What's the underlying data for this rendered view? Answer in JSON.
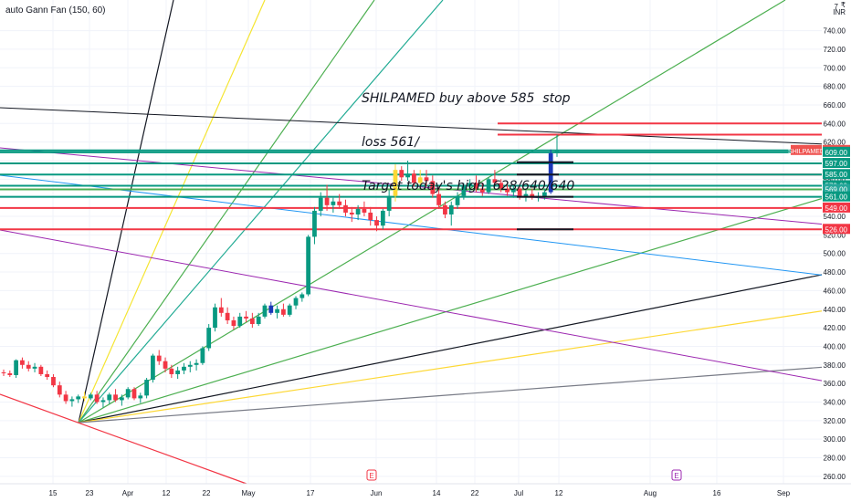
{
  "chart_data": {
    "type": "candlestick",
    "indicator_label": "auto Gann Fan (150, 60)",
    "currency_label": "₹",
    "currency_code": "INR",
    "annotation": {
      "lines": [
        "SHILPAMED buy above 585  stop",
        "loss 561/",
        "Target today's high  628/640/640"
      ]
    },
    "y_axis": {
      "ticks": [
        260,
        280,
        300,
        320,
        340,
        360,
        380,
        400,
        420,
        440,
        460,
        480,
        500,
        520,
        540,
        560,
        580,
        600,
        620,
        640,
        660,
        680,
        700,
        720,
        740
      ],
      "top_label": "7",
      "range": [
        252,
        773
      ]
    },
    "x_axis": {
      "labels": [
        "15",
        "23",
        "Apr",
        "12",
        "22",
        "May",
        "17",
        "Jun",
        "14",
        "22",
        "Jul",
        "12",
        "Aug",
        "16",
        "Sep"
      ]
    },
    "price_badges": [
      {
        "label": "SHILPAMED",
        "value": 611,
        "color": "#ef5350"
      },
      {
        "value": 609,
        "color": "#089981"
      },
      {
        "value": 597,
        "color": "#089981"
      },
      {
        "value": 585,
        "color": "#089981"
      },
      {
        "value": 573,
        "color": "#089981"
      },
      {
        "value": 569,
        "color": "#26a69a"
      },
      {
        "value": 561,
        "color": "#089981"
      },
      {
        "value": 549,
        "color": "#f23645"
      },
      {
        "value": 526,
        "color": "#f23645"
      }
    ],
    "horizontal_levels": [
      {
        "value": 640,
        "color": "#f23645",
        "from": "right"
      },
      {
        "value": 628,
        "color": "#f23645",
        "from": "right"
      },
      {
        "value": 611,
        "color": "#089981",
        "from": "left"
      },
      {
        "value": 609,
        "color": "#089981",
        "from": "left"
      },
      {
        "value": 597,
        "color": "#089981",
        "from": "left"
      },
      {
        "value": 585,
        "color": "#f23645",
        "from": "right"
      },
      {
        "value": 585,
        "color": "#089981",
        "from": "left"
      },
      {
        "value": 573,
        "color": "#089981",
        "from": "left"
      },
      {
        "value": 569,
        "color": "#4caf50",
        "from": "left"
      },
      {
        "value": 561,
        "color": "#089981",
        "from": "left"
      },
      {
        "value": 549,
        "color": "#f23645",
        "from": "left"
      },
      {
        "value": 526,
        "color": "#f23645",
        "from": "left"
      }
    ],
    "events": [
      "E",
      "E"
    ],
    "candles": [
      [
        372,
        375,
        368,
        371
      ],
      [
        371,
        374,
        367,
        369
      ],
      [
        369,
        386,
        366,
        385
      ],
      [
        385,
        388,
        376,
        380
      ],
      [
        380,
        384,
        373,
        376
      ],
      [
        376,
        382,
        372,
        378
      ],
      [
        378,
        380,
        368,
        370
      ],
      [
        370,
        374,
        364,
        367
      ],
      [
        367,
        370,
        356,
        358
      ],
      [
        358,
        362,
        345,
        348
      ],
      [
        348,
        352,
        338,
        341
      ],
      [
        341,
        346,
        335,
        343
      ],
      [
        343,
        348,
        339,
        346
      ],
      [
        346,
        351,
        341,
        344
      ],
      [
        344,
        350,
        342,
        348
      ],
      [
        348,
        352,
        338,
        340
      ],
      [
        340,
        345,
        334,
        342
      ],
      [
        342,
        350,
        338,
        348
      ],
      [
        348,
        354,
        340,
        342
      ],
      [
        342,
        348,
        336,
        345
      ],
      [
        345,
        356,
        343,
        354
      ],
      [
        354,
        356,
        342,
        344
      ],
      [
        344,
        350,
        339,
        347
      ],
      [
        347,
        366,
        344,
        364
      ],
      [
        364,
        392,
        361,
        390
      ],
      [
        390,
        396,
        380,
        384
      ],
      [
        384,
        388,
        372,
        376
      ],
      [
        376,
        380,
        366,
        370
      ],
      [
        370,
        378,
        365,
        374
      ],
      [
        374,
        382,
        370,
        378
      ],
      [
        378,
        384,
        372,
        380
      ],
      [
        380,
        386,
        374,
        382
      ],
      [
        382,
        400,
        380,
        398
      ],
      [
        398,
        424,
        395,
        420
      ],
      [
        420,
        446,
        416,
        442
      ],
      [
        442,
        452,
        432,
        436
      ],
      [
        436,
        442,
        424,
        428
      ],
      [
        428,
        432,
        418,
        422
      ],
      [
        422,
        436,
        420,
        432
      ],
      [
        432,
        438,
        426,
        430
      ],
      [
        430,
        436,
        420,
        424
      ],
      [
        424,
        436,
        422,
        432
      ],
      [
        432,
        446,
        430,
        444
      ],
      [
        444,
        448,
        434,
        436
      ],
      [
        436,
        444,
        430,
        440
      ],
      [
        440,
        446,
        432,
        434
      ],
      [
        434,
        446,
        432,
        444
      ],
      [
        444,
        454,
        440,
        452
      ],
      [
        452,
        458,
        448,
        456
      ],
      [
        456,
        520,
        454,
        518
      ],
      [
        518,
        550,
        510,
        546
      ],
      [
        546,
        566,
        540,
        560
      ],
      [
        560,
        574,
        546,
        552
      ],
      [
        552,
        560,
        544,
        556
      ],
      [
        556,
        564,
        548,
        552
      ],
      [
        552,
        558,
        540,
        544
      ],
      [
        544,
        550,
        534,
        542
      ],
      [
        542,
        552,
        536,
        548
      ],
      [
        548,
        556,
        540,
        544
      ],
      [
        544,
        550,
        530,
        536
      ],
      [
        536,
        540,
        524,
        530
      ],
      [
        530,
        548,
        526,
        546
      ],
      [
        546,
        568,
        540,
        562
      ],
      [
        562,
        596,
        556,
        590
      ],
      [
        590,
        594,
        578,
        582
      ],
      [
        582,
        600,
        578,
        586
      ],
      [
        586,
        590,
        572,
        576
      ],
      [
        576,
        590,
        570,
        582
      ],
      [
        582,
        590,
        572,
        578
      ],
      [
        578,
        584,
        560,
        564
      ],
      [
        564,
        572,
        548,
        552
      ],
      [
        552,
        556,
        538,
        542
      ],
      [
        542,
        556,
        530,
        552
      ],
      [
        552,
        566,
        548,
        562
      ],
      [
        562,
        576,
        558,
        572
      ],
      [
        572,
        580,
        566,
        576
      ],
      [
        576,
        584,
        566,
        570
      ],
      [
        570,
        576,
        562,
        566
      ],
      [
        566,
        582,
        564,
        580
      ],
      [
        580,
        590,
        574,
        576
      ],
      [
        576,
        580,
        566,
        570
      ],
      [
        570,
        574,
        562,
        566
      ],
      [
        566,
        574,
        560,
        570
      ],
      [
        570,
        572,
        558,
        562
      ],
      [
        562,
        568,
        556,
        564
      ],
      [
        564,
        570,
        558,
        560
      ],
      [
        560,
        566,
        556,
        562
      ],
      [
        562,
        570,
        558,
        566
      ],
      [
        566,
        612,
        564,
        608
      ],
      [
        608,
        628,
        604,
        611
      ]
    ]
  }
}
